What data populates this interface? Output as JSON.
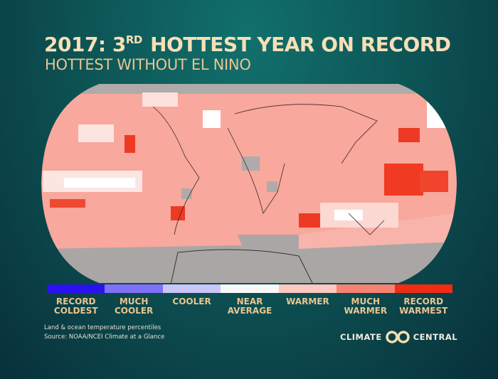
{
  "header": {
    "title_prefix": "2017: 3",
    "title_sup": "RD",
    "title_rest": "HOTTEST YEAR ON RECORD",
    "subtitle": "HOTTEST WITHOUT EL NINO"
  },
  "legend": {
    "items": [
      {
        "label1": "RECORD",
        "label2": "COLDEST",
        "color": "#2a12f0"
      },
      {
        "label1": "MUCH",
        "label2": "COOLER",
        "color": "#8070f8"
      },
      {
        "label1": "COOLER",
        "label2": "",
        "color": "#cac6f8"
      },
      {
        "label1": "NEAR",
        "label2": "AVERAGE",
        "color": "#f8f8f8"
      },
      {
        "label1": "WARMER",
        "label2": "",
        "color": "#fcc8c0"
      },
      {
        "label1": "MUCH",
        "label2": "WARMER",
        "color": "#f88272"
      },
      {
        "label1": "RECORD",
        "label2": "WARMEST",
        "color": "#f02c12"
      }
    ]
  },
  "footer": {
    "note": "Land & ocean temperature percentiles",
    "source": "Source: NOAA/NCEI Climate at a Glance"
  },
  "logo": {
    "left": "CLIMATE",
    "right": "CENTRAL"
  },
  "colors": {
    "no_data": "#aaaaaa",
    "title": "#f7dfb6"
  }
}
